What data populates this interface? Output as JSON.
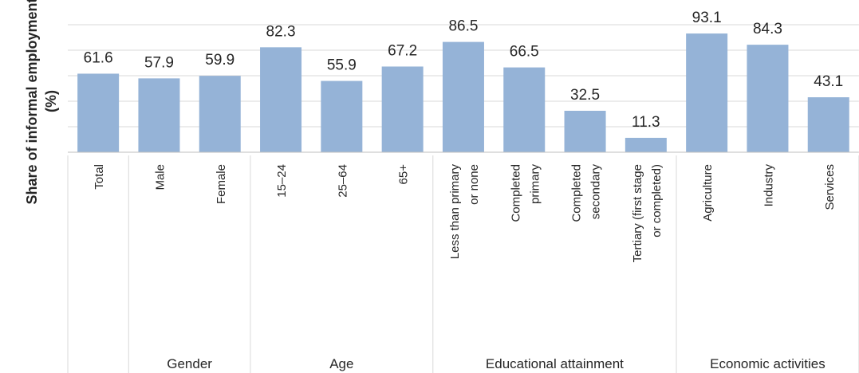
{
  "chart_data": {
    "type": "bar",
    "ylabel_lines": [
      "Share of informal employment",
      "(%)"
    ],
    "ylim": [
      0,
      100
    ],
    "grid": true,
    "value_labels": true,
    "bar_color": "#95b3d7",
    "categories": [
      {
        "lines": [
          "Total"
        ],
        "value": 61.6,
        "group": 0
      },
      {
        "lines": [
          "Male"
        ],
        "value": 57.9,
        "group": 1
      },
      {
        "lines": [
          "Female"
        ],
        "value": 59.9,
        "group": 1
      },
      {
        "lines": [
          "15–24"
        ],
        "value": 82.3,
        "group": 2
      },
      {
        "lines": [
          "25–64"
        ],
        "value": 55.9,
        "group": 2
      },
      {
        "lines": [
          "65+"
        ],
        "value": 67.2,
        "group": 2
      },
      {
        "lines": [
          "Less than primary",
          "or none"
        ],
        "value": 86.5,
        "group": 3
      },
      {
        "lines": [
          "Completed",
          "primary"
        ],
        "value": 66.5,
        "group": 3
      },
      {
        "lines": [
          "Completed",
          "secondary"
        ],
        "value": 32.5,
        "group": 3
      },
      {
        "lines": [
          "Tertiary (first stage",
          "or completed)"
        ],
        "value": 11.3,
        "group": 3
      },
      {
        "lines": [
          "Agriculture"
        ],
        "value": 93.1,
        "group": 4
      },
      {
        "lines": [
          "Industry"
        ],
        "value": 84.3,
        "group": 4
      },
      {
        "lines": [
          "Services"
        ],
        "value": 43.1,
        "group": 4
      }
    ],
    "groups": [
      "",
      "Gender",
      "Age",
      "Educational attainment",
      "Economic activities"
    ]
  }
}
